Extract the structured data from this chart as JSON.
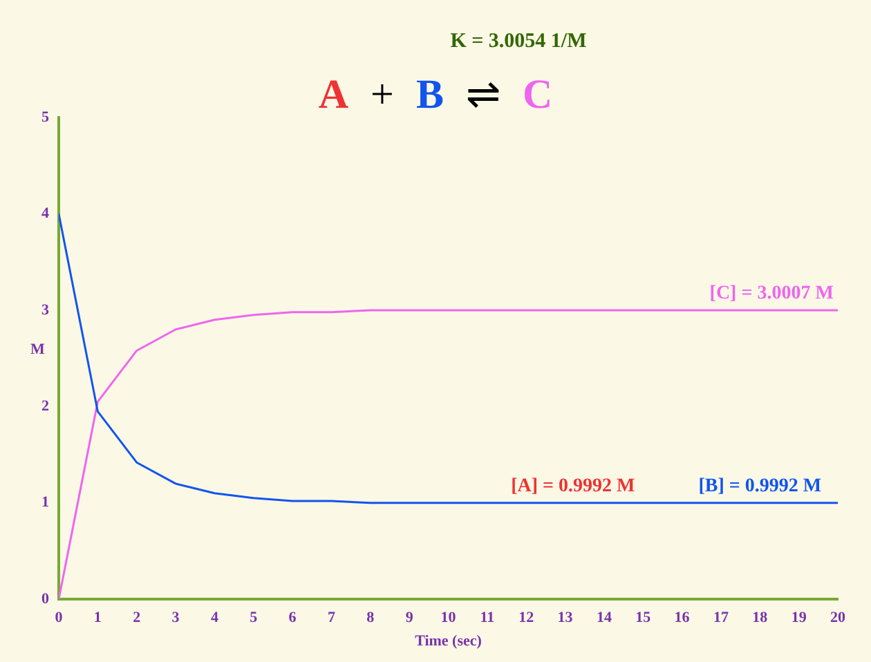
{
  "chart_data": {
    "type": "line",
    "title": "K = 3.0054 1/M",
    "subtitle": "A + B ⇌ C",
    "xlabel": "Time (sec)",
    "ylabel": "M",
    "x": [
      0,
      1,
      2,
      3,
      4,
      5,
      6,
      7,
      8,
      20
    ],
    "series": [
      {
        "color": "#ee3333",
        "values": [
          null,
          null,
          null,
          null,
          null,
          null,
          null,
          null,
          null,
          null
        ]
      },
      {
        "color": "#1155ee",
        "values": [
          4,
          1.95,
          1.42,
          1.2,
          1.1,
          1.05,
          1.02,
          1.02,
          1.0,
          1.0
        ]
      },
      {
        "color": "#ee66ee",
        "values": [
          0,
          2.05,
          2.58,
          2.8,
          2.9,
          2.95,
          2.98,
          2.98,
          3.0,
          3.0
        ]
      }
    ],
    "annotations": [
      {
        "text": "[A] = 0.9992 M",
        "x": 13.2,
        "y": 1
      },
      {
        "text": "[B] = 0.9992 M",
        "x": 18,
        "y": 1
      },
      {
        "text": "[C] = 3.0007 M",
        "x": 18.3,
        "y": 3
      }
    ],
    "xlim": [
      0,
      20
    ],
    "xticks": [
      0,
      1,
      2,
      3,
      4,
      5,
      6,
      7,
      8,
      9,
      10,
      11,
      12,
      13,
      14,
      15,
      16,
      17,
      18,
      19,
      20
    ],
    "ylim": [
      0,
      5
    ],
    "yticks": [
      0,
      1,
      2,
      3,
      4,
      5
    ],
    "grid": false,
    "legend": false,
    "marker": "none",
    "line_style": "solid"
  }
}
